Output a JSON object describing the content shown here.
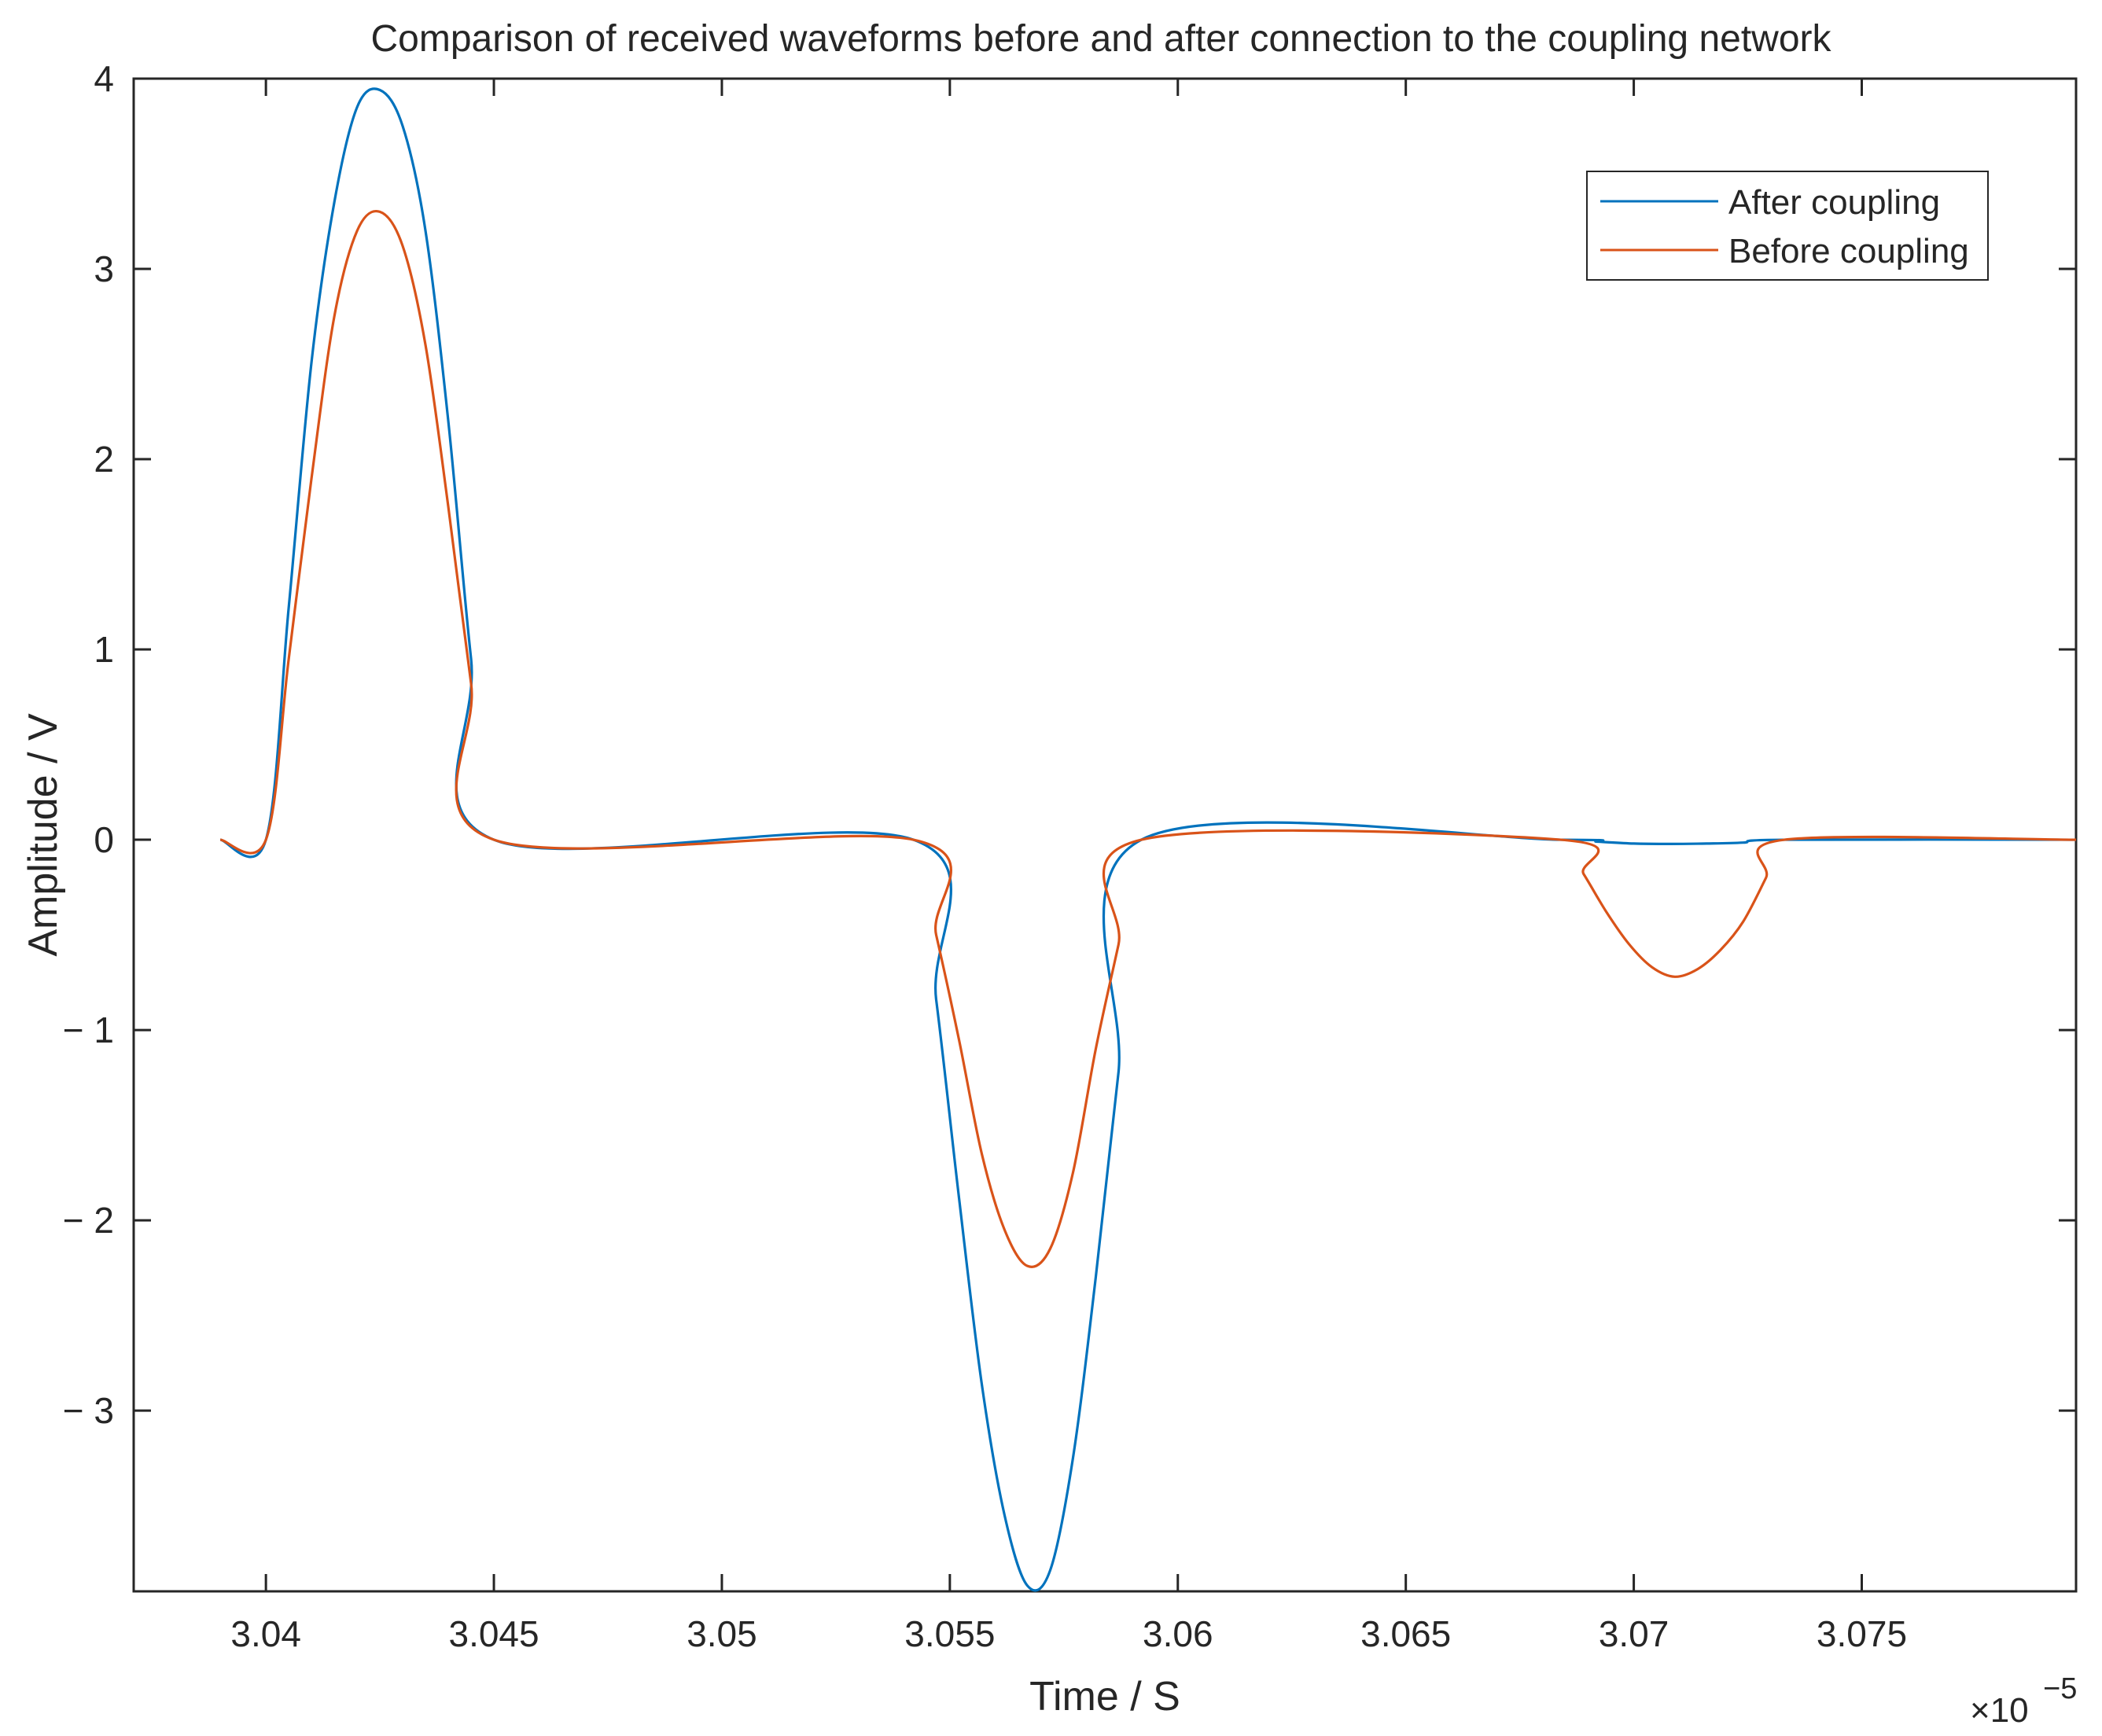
{
  "chart_data": {
    "type": "line",
    "title": "Comparison of received waveforms before and after connection to the coupling network",
    "xlabel": "Time / S",
    "ylabel": "Amplitude / V",
    "x_multiplier": "×10",
    "x_multiplier_exponent": "−5",
    "xlim": [
      3.0371,
      3.0797
    ],
    "ylim": [
      -3.95,
      4.0
    ],
    "xticks": [
      3.04,
      3.045,
      3.05,
      3.055,
      3.06,
      3.065,
      3.07,
      3.075
    ],
    "xtick_labels": [
      "3.04",
      "3.045",
      "3.05",
      "3.055",
      "3.06",
      "3.065",
      "3.07",
      "3.075"
    ],
    "yticks": [
      4,
      3,
      2,
      1,
      0,
      -1,
      -2,
      -3
    ],
    "ytick_labels": [
      "4",
      "3",
      "2",
      "1",
      "0",
      "− 1",
      "− 2",
      "− 3"
    ],
    "grid": false,
    "legend_position": "top-right",
    "series": [
      {
        "name": "After coupling",
        "color": "#0072BD",
        "x": [
          3.039,
          3.04,
          3.0405,
          3.041,
          3.0415,
          3.042,
          3.0425,
          3.043,
          3.0435,
          3.044,
          3.0445,
          3.045,
          3.0542,
          3.0547,
          3.0552,
          3.0557,
          3.0562,
          3.0567,
          3.0572,
          3.0577,
          3.0582,
          3.0587,
          3.0592,
          3.0684,
          3.0692,
          3.07,
          3.0708,
          3.0716,
          3.0724,
          3.0733,
          3.0797
        ],
        "y": [
          0,
          0,
          1.22,
          2.51,
          3.35,
          3.85,
          3.94,
          3.75,
          3.2,
          2.2,
          0.95,
          0.0,
          0.0,
          -0.84,
          -1.88,
          -2.86,
          -3.55,
          -3.92,
          -3.84,
          -3.25,
          -2.3,
          -1.22,
          0.0,
          0.0,
          -0.01,
          -0.02,
          -0.022,
          -0.02,
          -0.015,
          0.0,
          0.0
        ]
      },
      {
        "name": "Before coupling",
        "color": "#D95319",
        "x": [
          3.039,
          3.04,
          3.0405,
          3.041,
          3.0415,
          3.042,
          3.0425,
          3.043,
          3.0435,
          3.044,
          3.0445,
          3.045,
          3.0542,
          3.0547,
          3.0552,
          3.0557,
          3.0562,
          3.0567,
          3.0572,
          3.0577,
          3.0582,
          3.0587,
          3.0592,
          3.0684,
          3.0689,
          3.0694,
          3.0699,
          3.0704,
          3.0709,
          3.0714,
          3.0719,
          3.0724,
          3.0729,
          3.0733,
          3.0797
        ],
        "y": [
          0,
          0,
          0.95,
          1.9,
          2.75,
          3.2,
          3.3,
          3.12,
          2.6,
          1.75,
          0.82,
          0.0,
          0.0,
          -0.5,
          -1.05,
          -1.65,
          -2.05,
          -2.24,
          -2.15,
          -1.75,
          -1.1,
          -0.55,
          0.0,
          0.0,
          -0.18,
          -0.38,
          -0.55,
          -0.67,
          -0.72,
          -0.68,
          -0.58,
          -0.43,
          -0.2,
          0.0,
          0.0
        ]
      }
    ]
  }
}
